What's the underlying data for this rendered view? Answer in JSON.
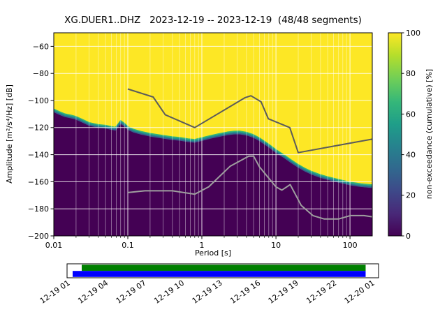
{
  "title": "XG.DUER1..DHZ   2023-12-19 -- 2023-12-19  (48/48 segments)",
  "chart_data": {
    "type": "heatmap",
    "title": "XG.DUER1..DHZ   2023-12-19 -- 2023-12-19  (48/48 segments)",
    "xlabel": "Period [s]",
    "ylabel": "Amplitude [m²/s⁴/Hz] [dB]",
    "colorbar_label": "non-exceedance (cumulative) [%]",
    "x_scale": "log",
    "grid": true,
    "xlim": [
      0.01,
      200
    ],
    "ylim": [
      -200,
      -50
    ],
    "x_ticks": [
      0.01,
      0.1,
      1,
      10,
      100
    ],
    "x_tick_labels": [
      "0.01",
      "0.1",
      "1",
      "10",
      "100"
    ],
    "y_ticks": [
      -60,
      -80,
      -100,
      -120,
      -140,
      -160,
      -180,
      -200
    ],
    "y_tick_labels": [
      "−60",
      "−80",
      "−100",
      "−120",
      "−140",
      "−160",
      "−180",
      "−200"
    ],
    "colorbar_ticks": [
      0,
      20,
      40,
      60,
      80,
      100
    ],
    "colorbar_tick_labels": [
      "0",
      "20",
      "40",
      "60",
      "80",
      "100"
    ],
    "colors": {
      "high": "#fde725",
      "low": "#440154",
      "nhnm_line": "#5b5b5b",
      "nlnm_line": "#9f9f9f",
      "grid": "#ffffff",
      "viridis_stops": [
        [
          "0",
          "#440154"
        ],
        [
          "0.11",
          "#482878"
        ],
        [
          "0.22",
          "#3e4989"
        ],
        [
          "0.33",
          "#31688e"
        ],
        [
          "0.44",
          "#26828e"
        ],
        [
          "0.55",
          "#1f9e89"
        ],
        [
          "0.66",
          "#35b779"
        ],
        [
          "0.77",
          "#6ece58"
        ],
        [
          "0.89",
          "#b5de2b"
        ],
        [
          "1",
          "#fde725"
        ]
      ],
      "band": [
        {
          "color": "#35b779",
          "offset": -1.2,
          "width": 1.7
        },
        {
          "color": "#21918c",
          "offset": 0.7,
          "width": 2.4
        },
        {
          "color": "#355f8d",
          "offset": 2.3,
          "width": 1.8
        }
      ]
    },
    "boundary_100pct_db": [
      [
        0.01,
        -107
      ],
      [
        0.012,
        -109
      ],
      [
        0.014,
        -110.5
      ],
      [
        0.017,
        -111.5
      ],
      [
        0.02,
        -112.5
      ],
      [
        0.024,
        -114.5
      ],
      [
        0.03,
        -117
      ],
      [
        0.04,
        -118.5
      ],
      [
        0.05,
        -119
      ],
      [
        0.06,
        -120
      ],
      [
        0.068,
        -120.5
      ],
      [
        0.073,
        -118.5
      ],
      [
        0.08,
        -115.5
      ],
      [
        0.09,
        -117.5
      ],
      [
        0.1,
        -120
      ],
      [
        0.12,
        -122
      ],
      [
        0.15,
        -123.5
      ],
      [
        0.2,
        -125
      ],
      [
        0.3,
        -126.5
      ],
      [
        0.4,
        -127.5
      ],
      [
        0.5,
        -128
      ],
      [
        0.65,
        -129
      ],
      [
        0.8,
        -129.5
      ],
      [
        1.0,
        -128.2
      ],
      [
        1.3,
        -126.6
      ],
      [
        1.7,
        -125.2
      ],
      [
        2.2,
        -124
      ],
      [
        2.7,
        -123.4
      ],
      [
        3.2,
        -123.3
      ],
      [
        4.0,
        -124.2
      ],
      [
        5.0,
        -126
      ],
      [
        6.0,
        -128.3
      ],
      [
        8.0,
        -133
      ],
      [
        10.0,
        -137
      ],
      [
        13.0,
        -141
      ],
      [
        16.0,
        -144.5
      ],
      [
        20.0,
        -148
      ],
      [
        25.0,
        -151
      ],
      [
        30.0,
        -153
      ],
      [
        40.0,
        -155.5
      ],
      [
        50.0,
        -157
      ],
      [
        70.0,
        -159
      ],
      [
        100.0,
        -161
      ],
      [
        140.0,
        -162.2
      ],
      [
        200.0,
        -163
      ]
    ],
    "noise_models": {
      "nhnm": [
        [
          0.1,
          -91.5
        ],
        [
          0.22,
          -97.4
        ],
        [
          0.32,
          -110.5
        ],
        [
          0.8,
          -120.0
        ],
        [
          3.8,
          -98.0
        ],
        [
          4.6,
          -96.5
        ],
        [
          6.3,
          -101.0
        ],
        [
          7.9,
          -113.5
        ],
        [
          15.4,
          -120.0
        ],
        [
          20.0,
          -138.5
        ],
        [
          200.0,
          -128.5
        ]
      ],
      "nlnm": [
        [
          0.1,
          -168.0
        ],
        [
          0.17,
          -166.7
        ],
        [
          0.4,
          -166.7
        ],
        [
          0.8,
          -169.2
        ],
        [
          1.24,
          -163.7
        ],
        [
          2.4,
          -148.6
        ],
        [
          4.3,
          -141.1
        ],
        [
          5.0,
          -141.1
        ],
        [
          6.0,
          -149.0
        ],
        [
          10.0,
          -163.8
        ],
        [
          12.0,
          -166.2
        ],
        [
          15.6,
          -162.1
        ],
        [
          21.9,
          -177.4
        ],
        [
          31.6,
          -185.0
        ],
        [
          45.0,
          -187.5
        ],
        [
          70.0,
          -187.5
        ],
        [
          101.0,
          -185.0
        ],
        [
          154.0,
          -185.0
        ],
        [
          200.0,
          -185.9
        ]
      ]
    },
    "timeline": {
      "segments_color": "#008000",
      "data_color": "#0000ff",
      "tick_labels": [
        "12-19 01",
        "12-19 04",
        "12-19 07",
        "12-19 10",
        "12-19 13",
        "12-19 16",
        "12-19 19",
        "12-19 22",
        "12-20 01"
      ]
    }
  }
}
